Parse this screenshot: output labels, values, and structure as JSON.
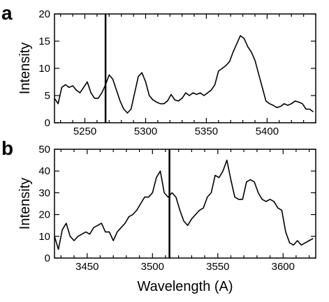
{
  "figure": {
    "xlabel": "Wavelength (A)"
  },
  "chart_data": [
    {
      "type": "line",
      "panel_label": "a",
      "xlabel": "",
      "ylabel": "Intensity",
      "xlim": [
        5225,
        5440
      ],
      "ylim": [
        0,
        20
      ],
      "xticks": [
        5250,
        5300,
        5350,
        5400
      ],
      "yticks": [
        0,
        5,
        10,
        15,
        20
      ],
      "grid": false,
      "vertical_marker_x": 5267,
      "series": [
        {
          "x": [
            5225,
            5228,
            5231,
            5234,
            5237,
            5240,
            5243,
            5246,
            5249,
            5252,
            5255,
            5258,
            5261,
            5264,
            5267,
            5270,
            5273,
            5276,
            5279,
            5282,
            5285,
            5288,
            5291,
            5294,
            5297,
            5300,
            5303,
            5306,
            5309,
            5312,
            5315,
            5318,
            5321,
            5324,
            5327,
            5330,
            5333,
            5336,
            5339,
            5342,
            5345,
            5348,
            5351,
            5354,
            5357,
            5360,
            5363,
            5366,
            5369,
            5372,
            5375,
            5378,
            5381,
            5384,
            5387,
            5390,
            5393,
            5396,
            5399,
            5402,
            5405,
            5408,
            5411,
            5414,
            5417,
            5420,
            5423,
            5426,
            5429,
            5432,
            5435,
            5438
          ],
          "y": [
            4.5,
            3.5,
            6.5,
            7.0,
            6.5,
            6.8,
            6.0,
            5.5,
            6.5,
            7.5,
            5.5,
            4.5,
            4.5,
            5.5,
            7.0,
            8.8,
            8.0,
            6.0,
            4.0,
            2.5,
            1.8,
            2.5,
            5.5,
            8.5,
            9.2,
            7.5,
            5.0,
            4.2,
            3.8,
            3.5,
            3.5,
            4.0,
            5.2,
            4.2,
            4.0,
            4.5,
            5.5,
            5.0,
            5.5,
            5.2,
            5.5,
            5.0,
            5.5,
            6.0,
            7.0,
            9.5,
            10.0,
            10.5,
            11.2,
            13.0,
            14.5,
            16.0,
            15.5,
            14.0,
            13.0,
            11.5,
            9.0,
            6.5,
            4.0,
            3.5,
            3.2,
            2.8,
            3.0,
            3.5,
            3.2,
            3.5,
            4.0,
            3.8,
            3.5,
            2.5,
            2.5,
            2.0
          ]
        }
      ]
    },
    {
      "type": "line",
      "panel_label": "b",
      "xlabel": "Wavelength (A)",
      "ylabel": "Intensity",
      "xlim": [
        3425,
        3625
      ],
      "ylim": [
        0,
        50
      ],
      "xticks": [
        3450,
        3500,
        3550,
        3600
      ],
      "yticks": [
        0,
        10,
        20,
        30,
        40,
        50
      ],
      "grid": false,
      "vertical_marker_x": 3513,
      "series": [
        {
          "x": [
            3425,
            3428,
            3431,
            3434,
            3437,
            3440,
            3443,
            3446,
            3449,
            3452,
            3455,
            3458,
            3461,
            3464,
            3467,
            3470,
            3473,
            3476,
            3479,
            3482,
            3485,
            3488,
            3491,
            3494,
            3497,
            3500,
            3503,
            3506,
            3509,
            3512,
            3515,
            3518,
            3521,
            3524,
            3527,
            3530,
            3533,
            3536,
            3539,
            3542,
            3545,
            3548,
            3551,
            3554,
            3557,
            3560,
            3563,
            3566,
            3569,
            3572,
            3575,
            3578,
            3581,
            3584,
            3587,
            3590,
            3593,
            3596,
            3599,
            3602,
            3605,
            3608,
            3611,
            3614,
            3617,
            3620,
            3623
          ],
          "y": [
            10,
            4,
            13,
            16,
            10,
            8,
            10,
            11,
            12,
            11,
            14,
            15,
            16,
            12,
            12,
            8,
            12,
            14,
            16,
            19,
            20,
            22,
            25,
            28,
            28,
            30,
            37,
            40,
            30,
            28,
            30,
            28,
            22,
            17,
            15,
            18,
            20,
            22,
            23,
            28,
            30,
            38,
            37,
            40,
            45,
            36,
            28,
            27,
            27,
            35,
            36,
            35,
            30,
            27,
            26,
            27,
            26,
            23,
            22,
            12,
            7,
            6,
            8,
            6,
            7,
            8,
            9
          ]
        }
      ]
    }
  ]
}
